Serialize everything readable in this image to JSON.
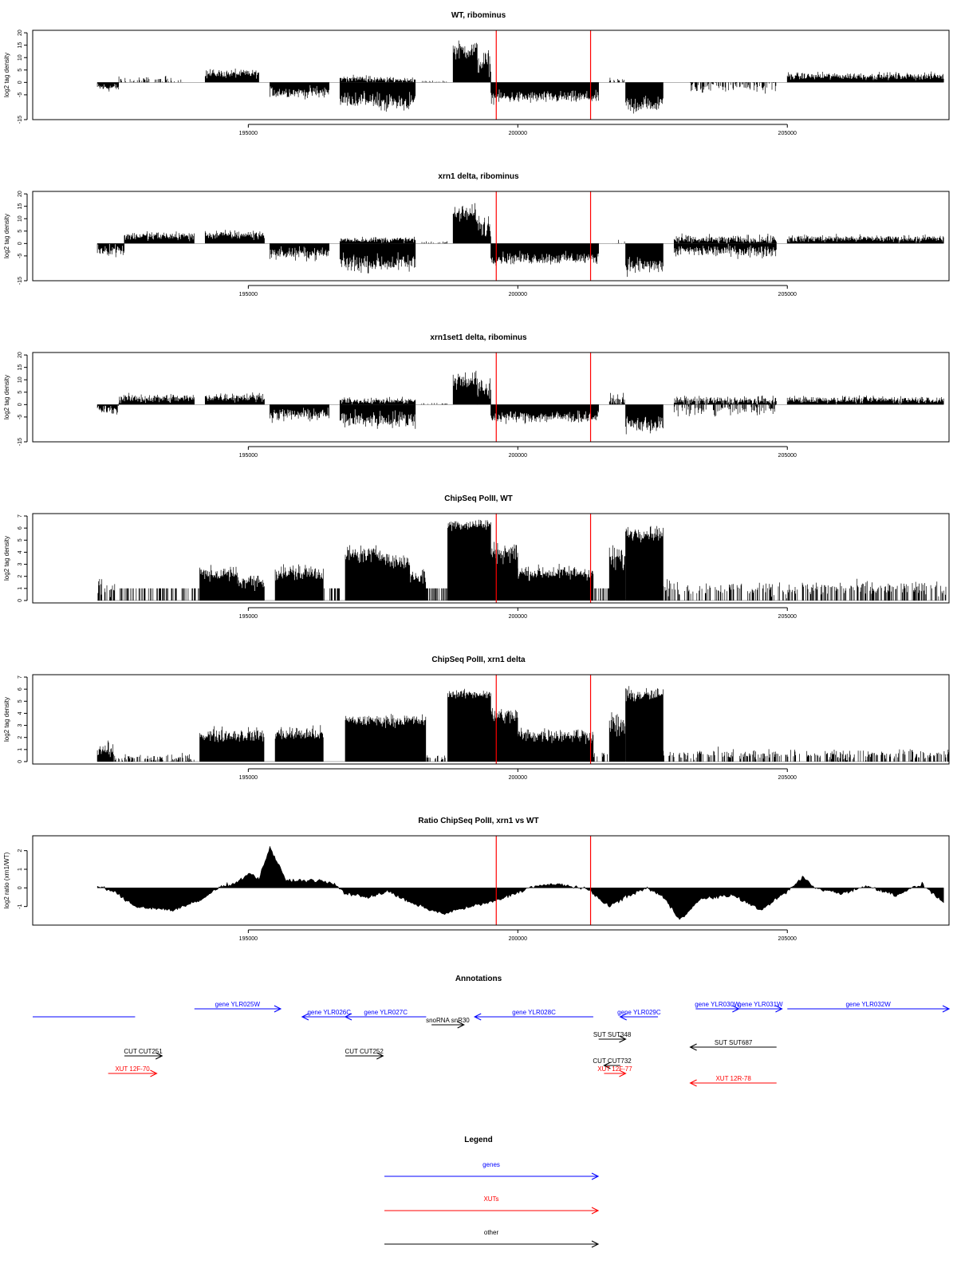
{
  "colors": {
    "data": "#000000",
    "marker": "#ff0000",
    "gene": "#0000ff",
    "xut": "#ff0000",
    "other": "#000000",
    "axis": "#000000"
  },
  "chart_data": [
    {
      "type": "bar",
      "title": "WT, ribominus",
      "ylabel": "log2 tag density",
      "xlim": [
        191000,
        208000
      ],
      "ylim": [
        -15,
        21
      ],
      "yticks": [
        -15,
        -5,
        0,
        5,
        10,
        15,
        20
      ],
      "xticks": [
        195000,
        200000,
        205000
      ],
      "markers_x": [
        199600,
        201350
      ],
      "segments": [
        {
          "x0": 192200,
          "x1": 192600,
          "y": -2,
          "sd": 1.5
        },
        {
          "x0": 192600,
          "x1": 193800,
          "y": 0.8,
          "sd": 1.5,
          "sparse": true
        },
        {
          "x0": 194200,
          "x1": 195200,
          "y": 3.5,
          "sd": 1.5
        },
        {
          "x0": 195400,
          "x1": 196500,
          "y": -4,
          "sd": 2
        },
        {
          "x0": 196700,
          "x1": 197300,
          "y": 1.5,
          "sd": 1
        },
        {
          "x0": 196700,
          "x1": 197300,
          "y": -7,
          "sd": 2.5
        },
        {
          "x0": 197300,
          "x1": 198100,
          "y": 1,
          "sd": 1
        },
        {
          "x0": 197300,
          "x1": 198100,
          "y": -8,
          "sd": 3
        },
        {
          "x0": 198200,
          "x1": 198700,
          "y": 0.3,
          "sd": 0.4,
          "sparse": true
        },
        {
          "x0": 198800,
          "x1": 199250,
          "y": 13,
          "sd": 3
        },
        {
          "x0": 199250,
          "x1": 199500,
          "y": 8,
          "sd": 4
        },
        {
          "x0": 199500,
          "x1": 201500,
          "y": -6,
          "sd": 2
        },
        {
          "x0": 201700,
          "x1": 202000,
          "y": 0.5,
          "sd": 1,
          "sparse": true
        },
        {
          "x0": 202000,
          "x1": 202700,
          "y": -9,
          "sd": 3
        },
        {
          "x0": 203100,
          "x1": 204800,
          "y": -1.5,
          "sd": 2,
          "sparse": true
        },
        {
          "x0": 205000,
          "x1": 207900,
          "y": 2.5,
          "sd": 1.2
        }
      ]
    },
    {
      "type": "bar",
      "title": "xrn1 delta, ribominus",
      "ylabel": "log2 tag density",
      "xlim": [
        191000,
        208000
      ],
      "ylim": [
        -15,
        21
      ],
      "yticks": [
        -15,
        -5,
        0,
        5,
        10,
        15,
        20
      ],
      "xticks": [
        195000,
        200000,
        205000
      ],
      "markers_x": [
        199600,
        201350
      ],
      "segments": [
        {
          "x0": 192200,
          "x1": 192700,
          "y": -2.5,
          "sd": 2
        },
        {
          "x0": 192700,
          "x1": 194000,
          "y": 3,
          "sd": 1.5
        },
        {
          "x0": 194200,
          "x1": 195300,
          "y": 3.5,
          "sd": 1.5
        },
        {
          "x0": 195400,
          "x1": 196500,
          "y": -4,
          "sd": 2
        },
        {
          "x0": 196700,
          "x1": 198100,
          "y": 1.5,
          "sd": 1
        },
        {
          "x0": 196700,
          "x1": 198100,
          "y": -8,
          "sd": 3
        },
        {
          "x0": 198200,
          "x1": 198700,
          "y": 0.5,
          "sd": 0.5,
          "sparse": true
        },
        {
          "x0": 198800,
          "x1": 199250,
          "y": 12,
          "sd": 3
        },
        {
          "x0": 199250,
          "x1": 199500,
          "y": 7,
          "sd": 4
        },
        {
          "x0": 199500,
          "x1": 201500,
          "y": -6,
          "sd": 2
        },
        {
          "x0": 201700,
          "x1": 202000,
          "y": 0.5,
          "sd": 1.5,
          "sparse": true
        },
        {
          "x0": 202000,
          "x1": 202700,
          "y": -9,
          "sd": 3
        },
        {
          "x0": 202900,
          "x1": 204800,
          "y": 1.5,
          "sd": 1.5
        },
        {
          "x0": 202900,
          "x1": 204800,
          "y": -3,
          "sd": 2
        },
        {
          "x0": 205000,
          "x1": 207900,
          "y": 2,
          "sd": 1.2
        }
      ]
    },
    {
      "type": "bar",
      "title": "xrn1set1 delta, ribominus",
      "ylabel": "log2 tag density",
      "xlim": [
        191000,
        208000
      ],
      "ylim": [
        -15,
        21
      ],
      "yticks": [
        -15,
        -5,
        0,
        5,
        10,
        15,
        20
      ],
      "xticks": [
        195000,
        200000,
        205000
      ],
      "markers_x": [
        199600,
        201350
      ],
      "segments": [
        {
          "x0": 192200,
          "x1": 192600,
          "y": -2,
          "sd": 1.5
        },
        {
          "x0": 192600,
          "x1": 194000,
          "y": 2.5,
          "sd": 1.5
        },
        {
          "x0": 194200,
          "x1": 195300,
          "y": 3,
          "sd": 1.5
        },
        {
          "x0": 195400,
          "x1": 196500,
          "y": -4,
          "sd": 2
        },
        {
          "x0": 196700,
          "x1": 198100,
          "y": 1.5,
          "sd": 1
        },
        {
          "x0": 196700,
          "x1": 198100,
          "y": -6,
          "sd": 3
        },
        {
          "x0": 198200,
          "x1": 198700,
          "y": 0.3,
          "sd": 0.4,
          "sparse": true
        },
        {
          "x0": 198800,
          "x1": 199250,
          "y": 10,
          "sd": 3
        },
        {
          "x0": 199250,
          "x1": 199500,
          "y": 6,
          "sd": 4
        },
        {
          "x0": 199500,
          "x1": 201500,
          "y": -5,
          "sd": 2
        },
        {
          "x0": 201700,
          "x1": 202000,
          "y": 1.5,
          "sd": 2
        },
        {
          "x0": 202000,
          "x1": 202700,
          "y": -8,
          "sd": 3
        },
        {
          "x0": 202900,
          "x1": 204800,
          "y": 1.5,
          "sd": 1.5
        },
        {
          "x0": 202900,
          "x1": 204800,
          "y": -2,
          "sd": 2,
          "sparse": true
        },
        {
          "x0": 205000,
          "x1": 207900,
          "y": 2,
          "sd": 1.2
        }
      ]
    },
    {
      "type": "bar",
      "title": "ChipSeq PolII, WT",
      "ylabel": "log2 tag density",
      "xlim": [
        191000,
        208000
      ],
      "ylim": [
        -0.2,
        7.2
      ],
      "yticks": [
        0,
        1,
        2,
        3,
        4,
        5,
        6,
        7
      ],
      "xticks": [
        195000,
        200000,
        205000
      ],
      "markers_x": [
        199600,
        201350
      ],
      "segments": [
        {
          "x0": 192200,
          "x1": 192600,
          "y": 1,
          "sd": 0.6,
          "sparse": true
        },
        {
          "x0": 192600,
          "x1": 194100,
          "y": 1,
          "sd": 0,
          "sparse": true
        },
        {
          "x0": 194100,
          "x1": 194800,
          "y": 2.2,
          "sd": 0.5
        },
        {
          "x0": 194800,
          "x1": 195300,
          "y": 1.6,
          "sd": 0.5
        },
        {
          "x0": 195500,
          "x1": 196400,
          "y": 2.3,
          "sd": 0.6
        },
        {
          "x0": 196400,
          "x1": 196700,
          "y": 1,
          "sd": 0,
          "sparse": true
        },
        {
          "x0": 196800,
          "x1": 197600,
          "y": 3.8,
          "sd": 0.6
        },
        {
          "x0": 197600,
          "x1": 198000,
          "y": 3.2,
          "sd": 0.5
        },
        {
          "x0": 198000,
          "x1": 198300,
          "y": 2,
          "sd": 0.6
        },
        {
          "x0": 198300,
          "x1": 198700,
          "y": 1,
          "sd": 0,
          "sparse": true
        },
        {
          "x0": 198700,
          "x1": 199500,
          "y": 6.3,
          "sd": 0.4
        },
        {
          "x0": 199500,
          "x1": 200000,
          "y": 4,
          "sd": 0.7
        },
        {
          "x0": 200000,
          "x1": 201400,
          "y": 2.3,
          "sd": 0.5
        },
        {
          "x0": 201400,
          "x1": 201700,
          "y": 1,
          "sd": 0,
          "sparse": true
        },
        {
          "x0": 201700,
          "x1": 202000,
          "y": 3.5,
          "sd": 1
        },
        {
          "x0": 202000,
          "x1": 202700,
          "y": 5.6,
          "sd": 0.5
        },
        {
          "x0": 202700,
          "x1": 208000,
          "y": 1,
          "sd": 0.5,
          "sparse": true
        }
      ]
    },
    {
      "type": "bar",
      "title": "ChipSeq PolII, xrn1 delta",
      "ylabel": "log2 tag density",
      "xlim": [
        191000,
        208000
      ],
      "ylim": [
        -0.2,
        7.2
      ],
      "yticks": [
        0,
        1,
        2,
        3,
        4,
        5,
        6,
        7
      ],
      "xticks": [
        195000,
        200000,
        205000
      ],
      "markers_x": [
        199600,
        201350
      ],
      "segments": [
        {
          "x0": 192200,
          "x1": 192500,
          "y": 1,
          "sd": 0.5
        },
        {
          "x0": 192500,
          "x1": 194000,
          "y": 0.3,
          "sd": 0.3,
          "sparse": true
        },
        {
          "x0": 194100,
          "x1": 195300,
          "y": 2.2,
          "sd": 0.5
        },
        {
          "x0": 195500,
          "x1": 196400,
          "y": 2.3,
          "sd": 0.5
        },
        {
          "x0": 196800,
          "x1": 198300,
          "y": 3.4,
          "sd": 0.4
        },
        {
          "x0": 198300,
          "x1": 198700,
          "y": 0.3,
          "sd": 0.2,
          "sparse": true
        },
        {
          "x0": 198700,
          "x1": 199500,
          "y": 5.6,
          "sd": 0.3
        },
        {
          "x0": 199500,
          "x1": 200000,
          "y": 3.8,
          "sd": 0.6
        },
        {
          "x0": 200000,
          "x1": 201400,
          "y": 2.2,
          "sd": 0.5
        },
        {
          "x0": 201400,
          "x1": 201700,
          "y": 0.5,
          "sd": 0.3,
          "sparse": true
        },
        {
          "x0": 201700,
          "x1": 202000,
          "y": 3,
          "sd": 1
        },
        {
          "x0": 202000,
          "x1": 202700,
          "y": 5.5,
          "sd": 0.5
        },
        {
          "x0": 202700,
          "x1": 208000,
          "y": 0.6,
          "sd": 0.4,
          "sparse": true
        }
      ]
    },
    {
      "type": "area",
      "title": "Ratio ChipSeq PolII, xrn1 vs WT",
      "ylabel": "log2 ratio (xrn1/WT)",
      "xlim": [
        191000,
        208000
      ],
      "ylim": [
        -2,
        2.8
      ],
      "yticks": [
        -1,
        0,
        1,
        2
      ],
      "xticks": [
        195000,
        200000,
        205000
      ],
      "markers_x": [
        199600,
        201350
      ],
      "x": [
        192200,
        192500,
        192900,
        193600,
        194100,
        194500,
        194800,
        195000,
        195200,
        195400,
        195700,
        196300,
        196600,
        196800,
        197200,
        197600,
        198000,
        198600,
        199000,
        199600,
        200300,
        200800,
        201300,
        201700,
        202000,
        202400,
        202700,
        203000,
        203400,
        204000,
        204500,
        205000,
        205300,
        205500,
        206000,
        206500,
        207000,
        207500,
        207900
      ],
      "y": [
        0.1,
        -0.2,
        -1,
        -1.2,
        -0.7,
        0.1,
        0.3,
        0.8,
        0.5,
        2.2,
        0.4,
        0.4,
        0.2,
        -0.3,
        -0.5,
        -0.2,
        -0.8,
        -1.4,
        -1.1,
        -0.7,
        0.1,
        0.2,
        -0.1,
        -1,
        -0.5,
        0,
        -0.5,
        -1.7,
        -0.6,
        -0.4,
        -1.2,
        -0.2,
        0.6,
        0,
        -0.3,
        0.1,
        -0.4,
        0.2,
        -0.8
      ]
    }
  ],
  "annotations": {
    "title": "Annotations",
    "features": [
      {
        "kind": "gene",
        "label": "",
        "x0": 191000,
        "x1": 192900,
        "strand": "none",
        "row": 2
      },
      {
        "kind": "gene",
        "label": "gene YLR025W",
        "x0": 194000,
        "x1": 195600,
        "strand": "+",
        "row": 1
      },
      {
        "kind": "gene",
        "label": "gene YLR026C",
        "x0": 196000,
        "x1": 197000,
        "strand": "-",
        "row": 2
      },
      {
        "kind": "gene",
        "label": "gene YLR027C",
        "x0": 196800,
        "x1": 198300,
        "strand": "-",
        "row": 2
      },
      {
        "kind": "gene",
        "label": "gene YLR028C",
        "x0": 199200,
        "x1": 201400,
        "strand": "-",
        "row": 2
      },
      {
        "kind": "gene",
        "label": "gene YLR029C",
        "x0": 201900,
        "x1": 202600,
        "strand": "-",
        "row": 2
      },
      {
        "kind": "gene",
        "label": "gene YLR030W",
        "x0": 203300,
        "x1": 204100,
        "strand": "+",
        "row": 1
      },
      {
        "kind": "gene",
        "label": "gene YLR031W",
        "x0": 204100,
        "x1": 204900,
        "strand": "+",
        "row": 1
      },
      {
        "kind": "gene",
        "label": "gene YLR032W",
        "x0": 205000,
        "x1": 208000,
        "strand": "+",
        "row": 1
      },
      {
        "kind": "other",
        "label": "snoRNA snR30",
        "x0": 198400,
        "x1": 199000,
        "strand": "+",
        "row": 3
      },
      {
        "kind": "other",
        "label": "SUT SUT348",
        "x0": 201500,
        "x1": 202000,
        "strand": "+",
        "row": 4
      },
      {
        "kind": "other",
        "label": "SUT SUT687",
        "x0": 203200,
        "x1": 204800,
        "strand": "-",
        "row": 5
      },
      {
        "kind": "other",
        "label": "CUT CUT251",
        "x0": 192700,
        "x1": 193400,
        "strand": "+",
        "row": 6
      },
      {
        "kind": "other",
        "label": "CUT CUT252",
        "x0": 196800,
        "x1": 197500,
        "strand": "+",
        "row": 6
      },
      {
        "kind": "other",
        "label": "CUT CUT732",
        "x0": 201600,
        "x1": 201900,
        "strand": "-",
        "row": 7
      },
      {
        "kind": "xut",
        "label": "XUT 12F-70",
        "x0": 192400,
        "x1": 193300,
        "strand": "+",
        "row": 8
      },
      {
        "kind": "xut",
        "label": "XUT 12F-77",
        "x0": 201600,
        "x1": 202000,
        "strand": "+",
        "row": 8
      },
      {
        "kind": "xut",
        "label": "XUT 12R-78",
        "x0": 203200,
        "x1": 204800,
        "strand": "-",
        "row": 9
      }
    ]
  },
  "legend": {
    "title": "Legend",
    "items": [
      {
        "label": "genes",
        "kind": "gene"
      },
      {
        "label": "XUTs",
        "kind": "xut"
      },
      {
        "label": "other",
        "kind": "other"
      }
    ]
  }
}
